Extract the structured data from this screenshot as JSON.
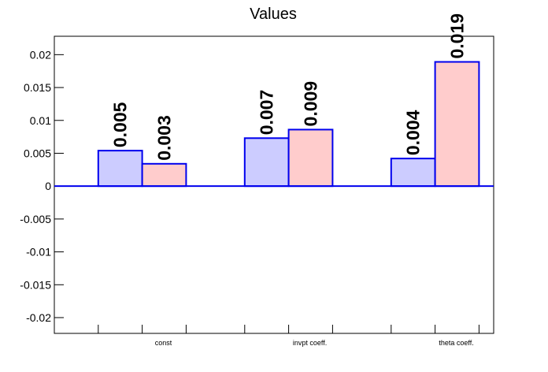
{
  "chart_data": {
    "type": "bar",
    "title": "Values",
    "categories": [
      "const",
      "invpt coeff.",
      "theta coeff."
    ],
    "series": [
      {
        "color": "#ccccff",
        "values": [
          0.0054,
          0.0073,
          0.0042
        ],
        "value_labels": [
          "0.005",
          "0.007",
          "0.004"
        ]
      },
      {
        "color": "#ffcccc",
        "values": [
          0.0034,
          0.0086,
          0.0189
        ],
        "value_labels": [
          "0.003",
          "0.009",
          "0.019"
        ]
      }
    ],
    "edge_color": "#0000ee",
    "ylim": [
      -0.0224,
      0.0228
    ],
    "yticks": [
      -0.02,
      -0.015,
      -0.01,
      -0.005,
      0,
      0.005,
      0.01,
      0.015,
      0.02
    ]
  }
}
